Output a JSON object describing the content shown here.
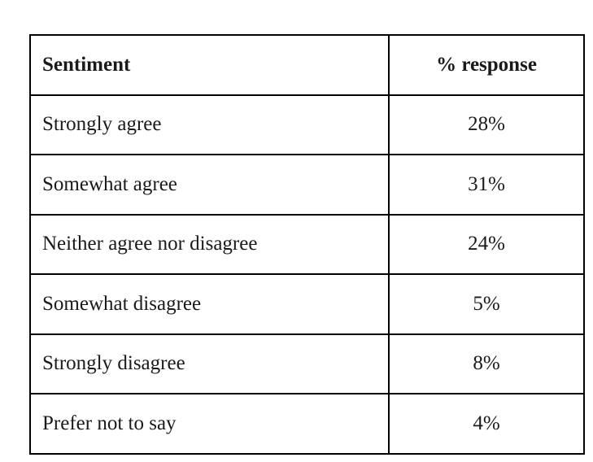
{
  "table": {
    "header": {
      "sentiment": "Sentiment",
      "response": "% response"
    },
    "rows": [
      {
        "sentiment": "Strongly agree",
        "response": "28%"
      },
      {
        "sentiment": "Somewhat agree",
        "response": "31%"
      },
      {
        "sentiment": "Neither agree nor disagree",
        "response": "24%"
      },
      {
        "sentiment": "Somewhat disagree",
        "response": "5%"
      },
      {
        "sentiment": "Strongly disagree",
        "response": "8%"
      },
      {
        "sentiment": "Prefer not to say",
        "response": "4%"
      }
    ]
  },
  "colors": {
    "border": "#000000",
    "text": "#1a1a1a",
    "background": "#ffffff"
  },
  "chart_data": {
    "type": "table",
    "title": "",
    "columns": [
      "Sentiment",
      "% response"
    ],
    "rows": [
      [
        "Strongly agree",
        "28%"
      ],
      [
        "Somewhat agree",
        "31%"
      ],
      [
        "Neither agree nor disagree",
        "24%"
      ],
      [
        "Somewhat disagree",
        "5%"
      ],
      [
        "Strongly disagree",
        "8%"
      ],
      [
        "Prefer not to say",
        "4%"
      ]
    ],
    "categories": [
      "Strongly agree",
      "Somewhat agree",
      "Neither agree nor disagree",
      "Somewhat disagree",
      "Strongly disagree",
      "Prefer not to say"
    ],
    "values": [
      28,
      31,
      24,
      5,
      8,
      4
    ],
    "value_unit": "%"
  }
}
